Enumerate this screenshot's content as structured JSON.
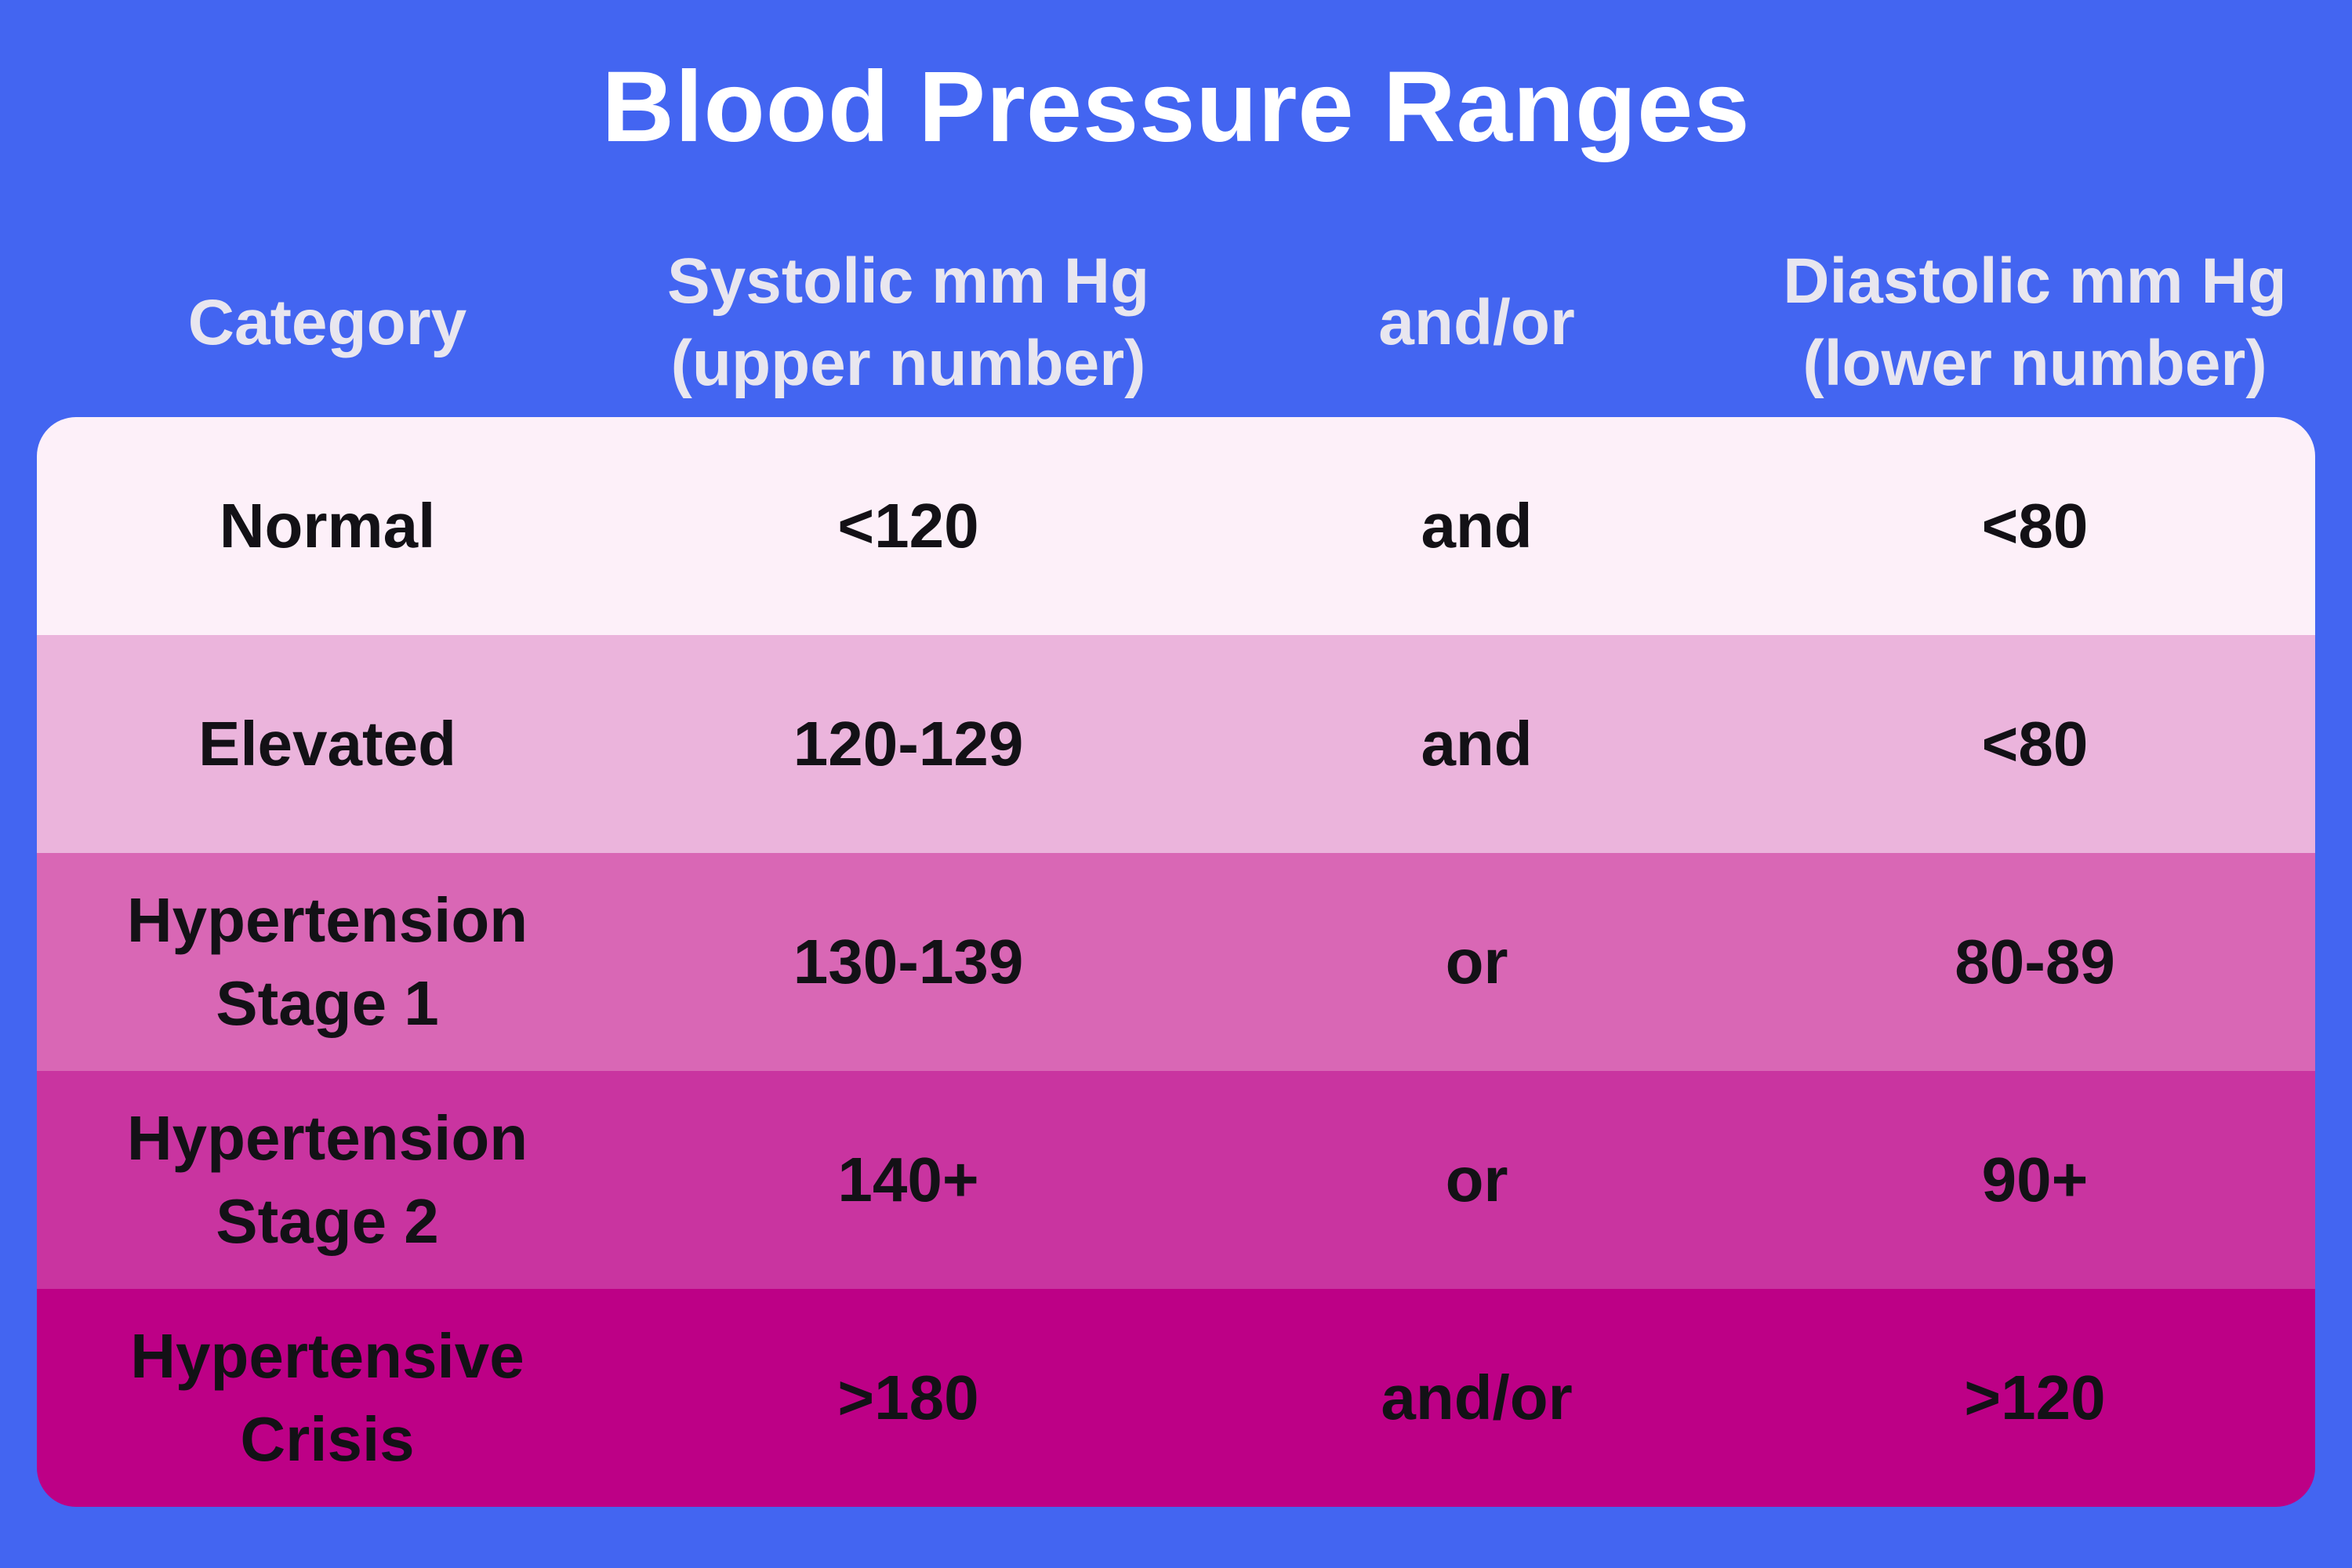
{
  "title": "Blood Pressure Ranges",
  "colors": {
    "background": "#4365f1",
    "title_text": "#ffffff",
    "header_text": "#e8e6ef",
    "row_text": "#131116",
    "row_colors": [
      "#fdf0f9",
      "#ebb4dc",
      "#d967b5",
      "#c934a0",
      "#bd0086"
    ]
  },
  "table": {
    "headers": [
      {
        "line1": "Category",
        "line2": ""
      },
      {
        "line1": "Systolic mm Hg",
        "line2": "(upper number)"
      },
      {
        "line1": "and/or",
        "line2": ""
      },
      {
        "line1": "Diastolic mm Hg",
        "line2": "(lower number)"
      }
    ],
    "rows": [
      {
        "category": "Normal",
        "systolic": "<120",
        "connector": "and",
        "diastolic": "<80"
      },
      {
        "category": "Elevated",
        "systolic": "120-129",
        "connector": "and",
        "diastolic": "<80"
      },
      {
        "category": "Hypertension Stage 1",
        "systolic": "130-139",
        "connector": "or",
        "diastolic": "80-89"
      },
      {
        "category": "Hypertension Stage 2",
        "systolic": "140+",
        "connector": "or",
        "diastolic": "90+"
      },
      {
        "category": "Hypertensive Crisis",
        "systolic": ">180",
        "connector": "and/or",
        "diastolic": ">120"
      }
    ]
  },
  "chart_data": {
    "type": "table",
    "title": "Blood Pressure Ranges",
    "columns": [
      "Category",
      "Systolic mm Hg (upper number)",
      "and/or",
      "Diastolic mm Hg (lower number)"
    ],
    "rows": [
      [
        "Normal",
        "<120",
        "and",
        "<80"
      ],
      [
        "Elevated",
        "120-129",
        "and",
        "<80"
      ],
      [
        "Hypertension Stage 1",
        "130-139",
        "or",
        "80-89"
      ],
      [
        "Hypertension Stage 2",
        "140+",
        "or",
        "90+"
      ],
      [
        "Hypertensive Crisis",
        ">180",
        "and/or",
        ">120"
      ]
    ],
    "row_colors": [
      "#fdf0f9",
      "#ebb4dc",
      "#d967b5",
      "#c934a0",
      "#bd0086"
    ],
    "layout": {
      "legend": "none",
      "grid": "off",
      "note": "rows shade from pale pink (Normal) to deep magenta (Hypertensive Crisis)"
    }
  }
}
